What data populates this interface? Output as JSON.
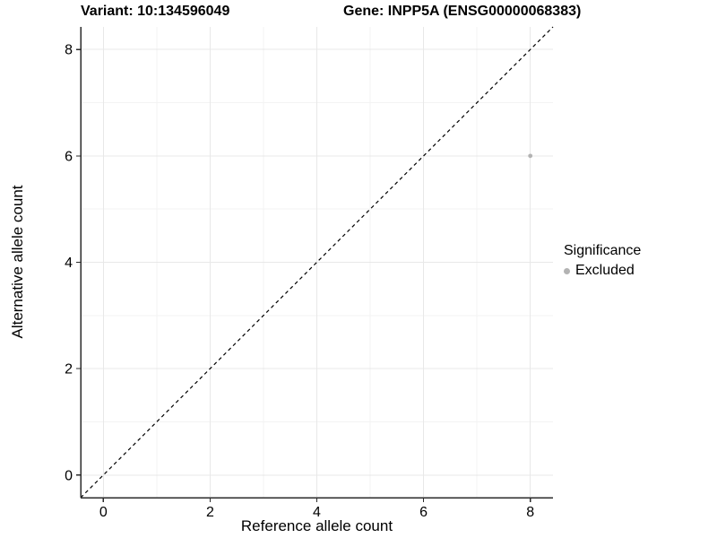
{
  "header": {
    "variant_title": "Variant: 10:134596049",
    "gene_title": "Gene: INPP5A (ENSG00000068383)"
  },
  "chart_data": {
    "type": "scatter",
    "xlabel": "Reference allele count",
    "ylabel": "Alternative allele count",
    "xlim": [
      -0.425,
      8.425
    ],
    "ylim": [
      -0.425,
      8.425
    ],
    "xticks": [
      0,
      2,
      4,
      6,
      8
    ],
    "yticks": [
      0,
      2,
      4,
      6,
      8
    ],
    "xticks_minor": [
      1,
      3,
      5,
      7
    ],
    "yticks_minor": [
      1,
      3,
      5,
      7
    ],
    "grid": true,
    "identity_line": {
      "slope": 1,
      "intercept": 0,
      "style": "dashed",
      "color": "#000000"
    },
    "series": [
      {
        "name": "Excluded",
        "color": "#b3b3b3",
        "points": [
          {
            "x": 8,
            "y": 6
          }
        ]
      }
    ],
    "legend": {
      "title": "Significance",
      "position": "right",
      "entries": [
        {
          "label": "Excluded",
          "color": "#b3b3b3",
          "marker": "circle"
        }
      ]
    },
    "colors": {
      "axis_line": "#2b2b2b",
      "tick_mark": "#2b2b2b",
      "grid_major": "#e8e8e8",
      "grid_minor": "#f3f3f3",
      "text": "#000000",
      "background": "#ffffff"
    }
  }
}
